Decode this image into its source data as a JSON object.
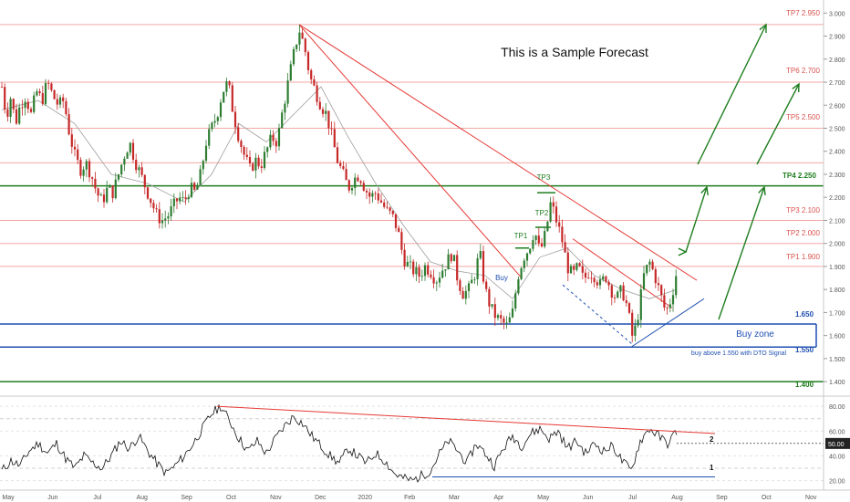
{
  "chart_data": {
    "type": "candlestick",
    "title": "This is a Sample Forecast",
    "instrument_note": "Daily price chart with RSI-style oscillator panel",
    "price_axis": {
      "ylim": [
        1.345,
        3.025
      ],
      "ticks": [
        "3.000",
        "2.900",
        "2.800",
        "2.700",
        "2.600",
        "2.500",
        "2.400",
        "2.300",
        "2.200",
        "2.100",
        "2.000",
        "1.900",
        "1.800",
        "1.700",
        "1.600",
        "1.500",
        "1.400"
      ]
    },
    "osc_axis": {
      "ylim": [
        16,
        86
      ],
      "ticks": [
        "80.00",
        "60.00",
        "40.00",
        "20.00"
      ],
      "current_label": "50.00",
      "current_value": 50
    },
    "x_axis": {
      "labels": [
        "May",
        "Jun",
        "Jul",
        "Aug",
        "Sep",
        "Oct",
        "Nov",
        "Dec",
        "2020",
        "Feb",
        "Mar",
        "Apr",
        "May",
        "Jun",
        "Jul",
        "Aug",
        "Sep",
        "Oct",
        "Nov"
      ]
    },
    "targets": [
      {
        "label": "TP7 2.950",
        "value": 2.95
      },
      {
        "label": "TP6 2.700",
        "value": 2.7
      },
      {
        "label": "TP5 2.500",
        "value": 2.5
      },
      {
        "label": "TP3 2.100",
        "value": 2.1
      },
      {
        "label": "TP2 2.000",
        "value": 2.0
      },
      {
        "label": "TP1 1.900",
        "value": 1.9
      }
    ],
    "major_level": {
      "label": "TP4 2.250",
      "value": 2.25
    },
    "faint_levels": [
      2.35
    ],
    "support_level": {
      "label": "1.400",
      "value": 1.4
    },
    "buy_zone": {
      "label": "Buy zone",
      "upper": 1.65,
      "lower": 1.55,
      "upper_label": "1.650",
      "lower_label": "1.550",
      "note": "buy above 1.550 with DTO Signal"
    },
    "in_chart_labels": {
      "tp1": "TP1",
      "tp2": "TP2",
      "tp3": "TP3",
      "buy": "Buy"
    },
    "osc_markers": {
      "upper": "2",
      "lower": "1"
    },
    "price_path": [
      [
        0,
        2.68
      ],
      [
        5,
        2.55
      ],
      [
        10,
        2.64
      ],
      [
        15,
        2.52
      ],
      [
        20,
        2.6
      ],
      [
        26,
        2.64
      ],
      [
        32,
        2.56
      ],
      [
        38,
        2.66
      ],
      [
        44,
        2.62
      ],
      [
        50,
        2.7
      ],
      [
        56,
        2.64
      ],
      [
        62,
        2.6
      ],
      [
        68,
        2.62
      ],
      [
        74,
        2.48
      ],
      [
        80,
        2.38
      ],
      [
        86,
        2.32
      ],
      [
        92,
        2.35
      ],
      [
        98,
        2.3
      ],
      [
        104,
        2.22
      ],
      [
        110,
        2.18
      ],
      [
        116,
        2.24
      ],
      [
        122,
        2.22
      ],
      [
        128,
        2.3
      ],
      [
        134,
        2.38
      ],
      [
        140,
        2.44
      ],
      [
        146,
        2.36
      ],
      [
        152,
        2.3
      ],
      [
        158,
        2.24
      ],
      [
        164,
        2.18
      ],
      [
        170,
        2.12
      ],
      [
        176,
        2.1
      ],
      [
        182,
        2.12
      ],
      [
        188,
        2.16
      ],
      [
        194,
        2.2
      ],
      [
        200,
        2.18
      ],
      [
        206,
        2.24
      ],
      [
        212,
        2.22
      ],
      [
        218,
        2.3
      ],
      [
        224,
        2.44
      ],
      [
        230,
        2.5
      ],
      [
        236,
        2.56
      ],
      [
        242,
        2.66
      ],
      [
        248,
        2.7
      ],
      [
        254,
        2.56
      ],
      [
        260,
        2.46
      ],
      [
        266,
        2.38
      ],
      [
        272,
        2.32
      ],
      [
        278,
        2.36
      ],
      [
        284,
        2.34
      ],
      [
        290,
        2.4
      ],
      [
        296,
        2.46
      ],
      [
        302,
        2.44
      ],
      [
        308,
        2.58
      ],
      [
        314,
        2.7
      ],
      [
        320,
        2.82
      ],
      [
        326,
        2.93
      ],
      [
        332,
        2.85
      ],
      [
        338,
        2.72
      ],
      [
        344,
        2.66
      ],
      [
        350,
        2.6
      ],
      [
        356,
        2.56
      ],
      [
        362,
        2.46
      ],
      [
        368,
        2.36
      ],
      [
        374,
        2.3
      ],
      [
        380,
        2.24
      ],
      [
        386,
        2.28
      ],
      [
        392,
        2.3
      ],
      [
        398,
        2.24
      ],
      [
        404,
        2.2
      ],
      [
        410,
        2.22
      ],
      [
        416,
        2.18
      ],
      [
        422,
        2.14
      ],
      [
        428,
        2.12
      ],
      [
        434,
        2.06
      ],
      [
        440,
        1.94
      ],
      [
        446,
        1.9
      ],
      [
        452,
        1.88
      ],
      [
        458,
        1.86
      ],
      [
        464,
        1.9
      ],
      [
        470,
        1.88
      ],
      [
        476,
        1.84
      ],
      [
        482,
        1.88
      ],
      [
        488,
        1.92
      ],
      [
        494,
        1.96
      ],
      [
        500,
        1.84
      ],
      [
        506,
        1.78
      ],
      [
        512,
        1.8
      ],
      [
        518,
        1.86
      ],
      [
        524,
        1.96
      ],
      [
        530,
        1.8
      ],
      [
        536,
        1.72
      ],
      [
        542,
        1.68
      ],
      [
        548,
        1.66
      ],
      [
        554,
        1.64
      ],
      [
        560,
        1.7
      ],
      [
        566,
        1.86
      ],
      [
        572,
        1.94
      ],
      [
        578,
        1.98
      ],
      [
        584,
        2.06
      ],
      [
        590,
        1.96
      ],
      [
        596,
        2.04
      ],
      [
        602,
        2.18
      ],
      [
        608,
        2.1
      ],
      [
        614,
        2.02
      ],
      [
        620,
        1.9
      ],
      [
        626,
        1.86
      ],
      [
        632,
        1.9
      ],
      [
        638,
        1.84
      ],
      [
        644,
        1.88
      ],
      [
        650,
        1.86
      ],
      [
        656,
        1.82
      ],
      [
        662,
        1.86
      ],
      [
        668,
        1.8
      ],
      [
        674,
        1.76
      ],
      [
        680,
        1.8
      ],
      [
        686,
        1.72
      ],
      [
        692,
        1.58
      ],
      [
        698,
        1.7
      ],
      [
        704,
        1.86
      ],
      [
        710,
        1.92
      ],
      [
        716,
        1.86
      ],
      [
        722,
        1.78
      ],
      [
        728,
        1.7
      ],
      [
        734,
        1.76
      ],
      [
        740,
        1.88
      ]
    ],
    "ma_path": [
      [
        0,
        2.58
      ],
      [
        40,
        2.62
      ],
      [
        80,
        2.52
      ],
      [
        120,
        2.3
      ],
      [
        160,
        2.26
      ],
      [
        200,
        2.18
      ],
      [
        230,
        2.3
      ],
      [
        260,
        2.52
      ],
      [
        290,
        2.44
      ],
      [
        320,
        2.56
      ],
      [
        350,
        2.68
      ],
      [
        380,
        2.46
      ],
      [
        410,
        2.26
      ],
      [
        440,
        2.08
      ],
      [
        470,
        1.92
      ],
      [
        500,
        1.88
      ],
      [
        530,
        1.86
      ],
      [
        560,
        1.76
      ],
      [
        590,
        1.94
      ],
      [
        620,
        1.98
      ],
      [
        650,
        1.86
      ],
      [
        680,
        1.8
      ],
      [
        710,
        1.76
      ],
      [
        740,
        1.8
      ]
    ],
    "osc_path": [
      [
        0,
        28
      ],
      [
        10,
        36
      ],
      [
        20,
        32
      ],
      [
        30,
        44
      ],
      [
        40,
        50
      ],
      [
        50,
        42
      ],
      [
        60,
        50
      ],
      [
        70,
        38
      ],
      [
        80,
        30
      ],
      [
        90,
        40
      ],
      [
        100,
        34
      ],
      [
        110,
        30
      ],
      [
        120,
        40
      ],
      [
        130,
        52
      ],
      [
        140,
        46
      ],
      [
        150,
        56
      ],
      [
        160,
        44
      ],
      [
        170,
        34
      ],
      [
        180,
        26
      ],
      [
        190,
        32
      ],
      [
        200,
        40
      ],
      [
        210,
        50
      ],
      [
        220,
        62
      ],
      [
        230,
        74
      ],
      [
        240,
        80
      ],
      [
        250,
        68
      ],
      [
        260,
        54
      ],
      [
        270,
        44
      ],
      [
        280,
        52
      ],
      [
        290,
        42
      ],
      [
        300,
        54
      ],
      [
        310,
        64
      ],
      [
        320,
        72
      ],
      [
        330,
        66
      ],
      [
        340,
        56
      ],
      [
        350,
        48
      ],
      [
        360,
        40
      ],
      [
        370,
        34
      ],
      [
        380,
        46
      ],
      [
        390,
        40
      ],
      [
        400,
        34
      ],
      [
        410,
        42
      ],
      [
        420,
        36
      ],
      [
        430,
        26
      ],
      [
        440,
        22
      ],
      [
        450,
        20
      ],
      [
        460,
        24
      ],
      [
        470,
        28
      ],
      [
        480,
        42
      ],
      [
        490,
        52
      ],
      [
        500,
        44
      ],
      [
        510,
        34
      ],
      [
        520,
        50
      ],
      [
        530,
        42
      ],
      [
        540,
        32
      ],
      [
        550,
        46
      ],
      [
        560,
        56
      ],
      [
        570,
        48
      ],
      [
        580,
        58
      ],
      [
        590,
        62
      ],
      [
        600,
        54
      ],
      [
        610,
        60
      ],
      [
        620,
        46
      ],
      [
        630,
        52
      ],
      [
        640,
        42
      ],
      [
        650,
        50
      ],
      [
        660,
        44
      ],
      [
        670,
        48
      ],
      [
        680,
        36
      ],
      [
        690,
        28
      ],
      [
        700,
        52
      ],
      [
        710,
        62
      ],
      [
        720,
        56
      ],
      [
        730,
        50
      ],
      [
        740,
        60
      ]
    ]
  }
}
